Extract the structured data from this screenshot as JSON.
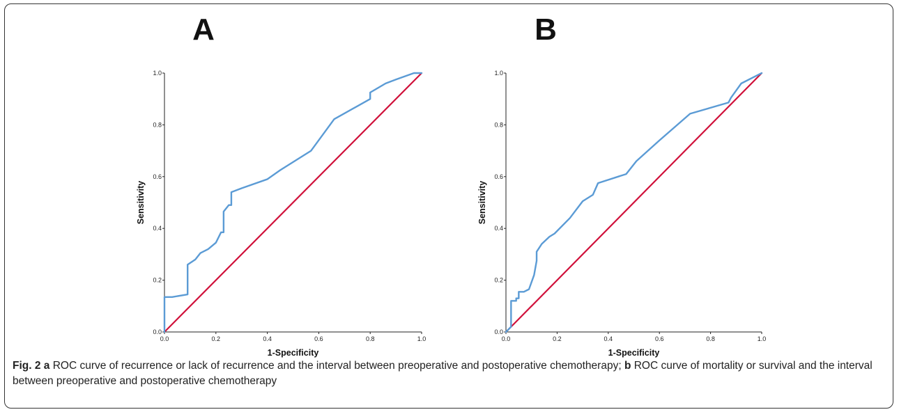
{
  "chart_data": [
    {
      "type": "line",
      "panel_label": "A",
      "xlabel": "1-Specificity",
      "ylabel": "Sensitivity",
      "xlim": [
        0,
        1
      ],
      "ylim": [
        0,
        1
      ],
      "xticks": [
        "0.0",
        "0.2",
        "0.4",
        "0.6",
        "0.8",
        "1.0"
      ],
      "yticks": [
        "0.0",
        "0.2",
        "0.4",
        "0.6",
        "0.8",
        "1.0"
      ],
      "grid": false,
      "series": [
        {
          "color": "#5b9bd5",
          "x": [
            0,
            0,
            0.03,
            0.09,
            0.09,
            0.12,
            0.14,
            0.17,
            0.2,
            0.22,
            0.23,
            0.23,
            0.25,
            0.26,
            0.26,
            0.3,
            0.4,
            0.45,
            0.57,
            0.66,
            0.8,
            0.8,
            0.86,
            0.9,
            0.97,
            1.0
          ],
          "y": [
            0,
            0.135,
            0.135,
            0.145,
            0.26,
            0.28,
            0.305,
            0.32,
            0.345,
            0.385,
            0.385,
            0.465,
            0.49,
            0.49,
            0.54,
            0.555,
            0.59,
            0.625,
            0.7,
            0.822,
            0.9,
            0.925,
            0.96,
            0.975,
            1.0,
            1.0
          ]
        },
        {
          "color": "#d0103a",
          "x": [
            0,
            1
          ],
          "y": [
            0,
            1
          ]
        }
      ]
    },
    {
      "type": "line",
      "panel_label": "B",
      "xlabel": "1-Specificity",
      "ylabel": "Sensitivity",
      "xlim": [
        0,
        1
      ],
      "ylim": [
        0,
        1
      ],
      "xticks": [
        "0.0",
        "0.2",
        "0.4",
        "0.6",
        "0.8",
        "1.0"
      ],
      "yticks": [
        "0.0",
        "0.2",
        "0.4",
        "0.6",
        "0.8",
        "1.0"
      ],
      "grid": false,
      "series": [
        {
          "color": "#5b9bd5",
          "x": [
            0,
            0.01,
            0.02,
            0.02,
            0.04,
            0.04,
            0.05,
            0.05,
            0.07,
            0.09,
            0.11,
            0.12,
            0.12,
            0.14,
            0.17,
            0.19,
            0.25,
            0.3,
            0.34,
            0.36,
            0.47,
            0.51,
            0.6,
            0.72,
            0.87,
            0.88,
            0.92,
            0.98,
            1.0
          ],
          "y": [
            0,
            0.01,
            0.02,
            0.12,
            0.12,
            0.13,
            0.13,
            0.155,
            0.155,
            0.165,
            0.22,
            0.275,
            0.31,
            0.34,
            0.368,
            0.38,
            0.44,
            0.505,
            0.53,
            0.575,
            0.61,
            0.66,
            0.74,
            0.843,
            0.886,
            0.905,
            0.96,
            0.99,
            1.0
          ]
        },
        {
          "color": "#d0103a",
          "x": [
            0,
            1
          ],
          "y": [
            0,
            1
          ]
        }
      ]
    }
  ],
  "caption": {
    "fig_label": "Fig. 2",
    "a_label": "a",
    "a_text": " ROC curve of recurrence or lack of recurrence and the interval between preoperative and postoperative chemotherapy; ",
    "b_label": "b",
    "b_text": " ROC curve of mortality or survival and the interval between preoperative and postoperative chemotherapy"
  }
}
